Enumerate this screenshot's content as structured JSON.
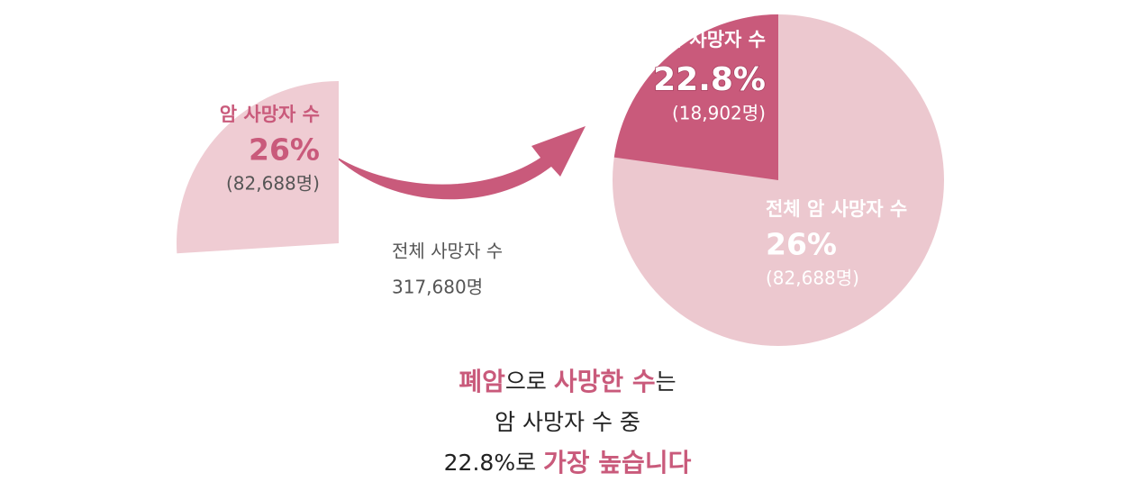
{
  "chart_data": [
    {
      "type": "pie",
      "categories": [
        "암 사망자 수"
      ],
      "values": [
        26
      ],
      "value_labels": [
        "26%"
      ],
      "counts": [
        "(82,688명)"
      ],
      "colors": [
        "#efccd3"
      ],
      "caption": [
        "전체 사망자 수",
        "317,680명"
      ]
    },
    {
      "type": "pie",
      "categories": [
        "폐암 사망자 수",
        "전체 암 사망자 수"
      ],
      "values": [
        22.8,
        26
      ],
      "value_labels": [
        "22.8%",
        "26%"
      ],
      "counts": [
        "(18,902명)",
        "(82,688명)"
      ],
      "colors": [
        "#c95a7b",
        "#ecc8cf"
      ]
    }
  ],
  "footer": [
    [
      {
        "text": "폐암",
        "highlight": true
      },
      {
        "text": "으로 ",
        "highlight": false
      },
      {
        "text": "사망한 수",
        "highlight": true
      },
      {
        "text": "는",
        "highlight": false
      }
    ],
    [
      {
        "text": "암 사망자 수 중",
        "highlight": false
      }
    ],
    [
      {
        "text": "22.8%로 ",
        "highlight": false
      },
      {
        "text": "가장 높습니다",
        "highlight": true
      }
    ]
  ]
}
